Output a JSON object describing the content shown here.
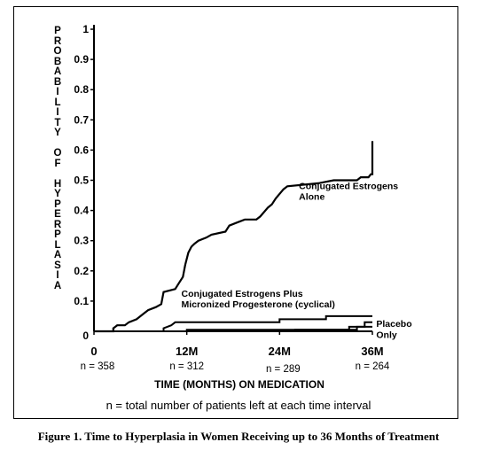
{
  "chart_data": {
    "type": "line",
    "title": "",
    "ylabel": "PROBABILITY OF HYPERPLASIA",
    "xlabel": "TIME (MONTHS) ON MEDICATION",
    "xlim": [
      0,
      36
    ],
    "ylim": [
      0,
      1
    ],
    "x_ticks": [
      {
        "x": 0,
        "label": "0"
      },
      {
        "x": 12,
        "label": "12M"
      },
      {
        "x": 24,
        "label": "24M"
      },
      {
        "x": 36,
        "label": "36M"
      }
    ],
    "y_ticks": [
      {
        "y": 1,
        "label": "1"
      },
      {
        "y": 0.9,
        "label": "0.9"
      },
      {
        "y": 0.8,
        "label": "0.8"
      },
      {
        "y": 0.7,
        "label": "0.7"
      },
      {
        "y": 0.6,
        "label": "0.6"
      },
      {
        "y": 0.5,
        "label": "0.5"
      },
      {
        "y": 0.4,
        "label": "0.4"
      },
      {
        "y": 0.3,
        "label": "0.3"
      },
      {
        "y": 0.2,
        "label": "0.2"
      },
      {
        "y": 0.1,
        "label": "0.1"
      },
      {
        "y": 0,
        "label": "0"
      }
    ],
    "n_labels": [
      {
        "x": 0,
        "label": "n = 358"
      },
      {
        "x": 12,
        "label": "n = 312"
      },
      {
        "x": 24,
        "label": "n = 289"
      },
      {
        "x": 36,
        "label": "n = 264"
      }
    ],
    "series": [
      {
        "name": "Conjugated Estrogens Alone",
        "label_lines": [
          "Conjugated Estrogens",
          "Alone"
        ],
        "label_at": {
          "x": 26.5,
          "y": 0.47
        },
        "points": [
          [
            0,
            0
          ],
          [
            2.5,
            0
          ],
          [
            2.5,
            0.01
          ],
          [
            3,
            0.02
          ],
          [
            4,
            0.02
          ],
          [
            4.5,
            0.03
          ],
          [
            5.5,
            0.04
          ],
          [
            6.5,
            0.06
          ],
          [
            7,
            0.07
          ],
          [
            8,
            0.08
          ],
          [
            8.7,
            0.09
          ],
          [
            9,
            0.13
          ],
          [
            10.5,
            0.14
          ],
          [
            11,
            0.16
          ],
          [
            11.5,
            0.18
          ],
          [
            11.8,
            0.22
          ],
          [
            12.2,
            0.26
          ],
          [
            12.6,
            0.28
          ],
          [
            13,
            0.29
          ],
          [
            13.5,
            0.3
          ],
          [
            14.5,
            0.31
          ],
          [
            15.2,
            0.32
          ],
          [
            17,
            0.33
          ],
          [
            17.5,
            0.35
          ],
          [
            18.5,
            0.36
          ],
          [
            19.5,
            0.37
          ],
          [
            21,
            0.37
          ],
          [
            21.5,
            0.38
          ],
          [
            22.5,
            0.41
          ],
          [
            23,
            0.42
          ],
          [
            23.5,
            0.44
          ],
          [
            24.5,
            0.47
          ],
          [
            25,
            0.48
          ],
          [
            29,
            0.49
          ],
          [
            31,
            0.5
          ],
          [
            34,
            0.5
          ],
          [
            34.5,
            0.51
          ],
          [
            35.5,
            0.51
          ],
          [
            35.8,
            0.52
          ],
          [
            36,
            0.52
          ],
          [
            36,
            0.63
          ]
        ]
      },
      {
        "name": "Conjugated Estrogens Plus Micronized Progesterone (cyclical)",
        "label_lines": [
          "Conjugated Estrogens Plus",
          "Micronized Progesterone (cyclical)"
        ],
        "label_at": {
          "x": 11.3,
          "y": 0.115
        },
        "points": [
          [
            0,
            0
          ],
          [
            9,
            0
          ],
          [
            9,
            0.01
          ],
          [
            10,
            0.02
          ],
          [
            10.5,
            0.03
          ],
          [
            24,
            0.03
          ],
          [
            24,
            0.04
          ],
          [
            30,
            0.04
          ],
          [
            30,
            0.05
          ],
          [
            36,
            0.05
          ]
        ]
      },
      {
        "name": "Placebo",
        "label_lines": [
          "Placebo"
        ],
        "label_at": {
          "x": 36.5,
          "y": 0.015
        },
        "points": [
          [
            0,
            0
          ],
          [
            26,
            0
          ],
          [
            26,
            0.005
          ],
          [
            33,
            0.005
          ],
          [
            33,
            0.015
          ],
          [
            35,
            0.015
          ],
          [
            35,
            0.03
          ],
          [
            36,
            0.03
          ]
        ]
      },
      {
        "name": "Only",
        "label_lines": [
          "Only"
        ],
        "label_at": {
          "x": 36.5,
          "y": -0.022
        },
        "points": [
          [
            0,
            0
          ],
          [
            12,
            0
          ],
          [
            12,
            0.005
          ],
          [
            34,
            0.005
          ],
          [
            34,
            0.015
          ],
          [
            36,
            0.015
          ]
        ]
      }
    ]
  },
  "y_axis_letters": [
    "P",
    "R",
    "O",
    "B",
    "A",
    "B",
    "I",
    "L",
    "I",
    "T",
    "Y",
    "",
    "O",
    "F",
    "",
    "H",
    "Y",
    "P",
    "E",
    "R",
    "P",
    "L",
    "A",
    "S",
    "I",
    "A"
  ],
  "n_note": "n = total number of patients left at each time interval",
  "caption": "Figure 1. Time to Hyperplasia in Women Receiving up to 36 Months of Treatment"
}
